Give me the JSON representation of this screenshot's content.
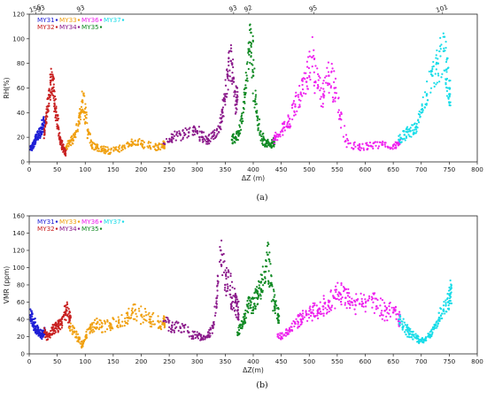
{
  "chart_data": [
    {
      "type": "scatter",
      "caption": "(a)",
      "xlabel": "ΔZ (m)",
      "ylabel": "RH(%)",
      "xlim": [
        0,
        800
      ],
      "ylim": [
        0,
        120
      ],
      "xticks": [
        0,
        50,
        100,
        150,
        200,
        250,
        300,
        350,
        400,
        450,
        500,
        550,
        600,
        650,
        700,
        750,
        800
      ],
      "yticks": [
        0,
        20,
        40,
        60,
        80,
        100,
        120
      ],
      "grid": false,
      "legend_position": "top-left",
      "top_labels": [
        {
          "x": 12,
          "text": "155"
        },
        {
          "x": 22,
          "text": "93"
        },
        {
          "x": 93,
          "text": "93"
        },
        {
          "x": 365,
          "text": "93"
        },
        {
          "x": 392,
          "text": "92"
        },
        {
          "x": 508,
          "text": "95"
        },
        {
          "x": 738,
          "text": "101"
        }
      ],
      "series": [
        {
          "name": "MY31",
          "color": "#1f1fd6",
          "x": [
            2,
            5,
            8,
            11,
            14,
            17,
            20,
            23,
            26
          ],
          "y": [
            10,
            12,
            15,
            18,
            20,
            22,
            24,
            28,
            30
          ]
        },
        {
          "name": "MY32",
          "color": "#c82020",
          "x": [
            27,
            30,
            33,
            36,
            39,
            42,
            45,
            48,
            52,
            56,
            60,
            64
          ],
          "y": [
            22,
            35,
            45,
            58,
            66,
            60,
            50,
            38,
            28,
            18,
            12,
            8
          ]
        },
        {
          "name": "MY33",
          "color": "#f0a010",
          "x": [
            66,
            72,
            78,
            84,
            90,
            95,
            100,
            105,
            112,
            120,
            130,
            140,
            155,
            170,
            185,
            200,
            215,
            230,
            240
          ],
          "y": [
            12,
            16,
            18,
            25,
            38,
            50,
            40,
            25,
            14,
            12,
            10,
            9,
            10,
            12,
            16,
            15,
            13,
            12,
            14
          ]
        },
        {
          "name": "MY34",
          "color": "#8b1a8b",
          "x": [
            240,
            255,
            270,
            285,
            300,
            310,
            320,
            330,
            340,
            345,
            350,
            355,
            360,
            365,
            370
          ],
          "y": [
            15,
            20,
            22,
            24,
            25,
            20,
            18,
            22,
            28,
            40,
            55,
            70,
            82,
            65,
            50
          ]
        },
        {
          "name": "MY35",
          "color": "#118a24",
          "x": [
            362,
            368,
            374,
            380,
            386,
            392,
            396,
            400,
            406,
            412,
            418,
            424,
            430,
            436
          ],
          "y": [
            18,
            20,
            22,
            35,
            60,
            90,
            105,
            70,
            40,
            22,
            18,
            15,
            14,
            16
          ]
        },
        {
          "name": "MY36",
          "color": "#ee22ee",
          "x": [
            436,
            445,
            455,
            465,
            475,
            485,
            495,
            505,
            515,
            525,
            535,
            545,
            555,
            570,
            590,
            610,
            630,
            650,
            660
          ],
          "y": [
            18,
            22,
            28,
            35,
            45,
            55,
            65,
            85,
            60,
            55,
            70,
            60,
            35,
            15,
            12,
            13,
            14,
            13,
            15
          ]
        },
        {
          "name": "MY37",
          "color": "#18dce8",
          "x": [
            660,
            670,
            680,
            690,
            700,
            710,
            720,
            730,
            740,
            745,
            750
          ],
          "y": [
            18,
            22,
            25,
            28,
            40,
            55,
            70,
            80,
            90,
            75,
            55
          ]
        }
      ]
    },
    {
      "type": "scatter",
      "caption": "(b)",
      "xlabel": "ΔZ(m)",
      "ylabel": "VMR (ppm)",
      "xlim": [
        0,
        800
      ],
      "ylim": [
        0,
        160
      ],
      "xticks": [
        0,
        50,
        100,
        150,
        200,
        250,
        300,
        350,
        400,
        450,
        500,
        550,
        600,
        650,
        700,
        750,
        800
      ],
      "yticks": [
        0,
        20,
        40,
        60,
        80,
        100,
        120,
        140,
        160
      ],
      "grid": false,
      "legend_position": "top-left",
      "series": [
        {
          "name": "MY31",
          "color": "#1f1fd6",
          "x": [
            2,
            5,
            8,
            11,
            14,
            17,
            20,
            23,
            26
          ],
          "y": [
            45,
            40,
            36,
            32,
            28,
            26,
            24,
            22,
            25
          ]
        },
        {
          "name": "MY32",
          "color": "#c82020",
          "x": [
            27,
            32,
            37,
            42,
            47,
            52,
            57,
            62,
            67,
            72
          ],
          "y": [
            25,
            20,
            22,
            28,
            30,
            32,
            35,
            45,
            50,
            40
          ]
        },
        {
          "name": "MY33",
          "color": "#f0a010",
          "x": [
            72,
            80,
            88,
            95,
            102,
            110,
            120,
            130,
            145,
            160,
            175,
            185,
            200,
            215,
            230,
            240
          ],
          "y": [
            30,
            25,
            18,
            10,
            22,
            30,
            35,
            32,
            34,
            36,
            42,
            48,
            45,
            40,
            38,
            36
          ]
        },
        {
          "name": "MY34",
          "color": "#8b1a8b",
          "x": [
            240,
            255,
            270,
            285,
            300,
            310,
            320,
            328,
            335,
            342,
            350,
            356,
            362,
            368,
            372
          ],
          "y": [
            38,
            33,
            30,
            25,
            20,
            18,
            22,
            30,
            65,
            120,
            80,
            95,
            65,
            60,
            50
          ]
        },
        {
          "name": "MY35",
          "color": "#118a24",
          "x": [
            372,
            378,
            384,
            390,
            396,
            402,
            408,
            414,
            420,
            426,
            432,
            438,
            444
          ],
          "y": [
            25,
            30,
            40,
            55,
            60,
            58,
            70,
            75,
            95,
            115,
            80,
            55,
            45
          ]
        },
        {
          "name": "MY36",
          "color": "#ee22ee",
          "x": [
            444,
            455,
            465,
            475,
            485,
            495,
            505,
            515,
            525,
            535,
            545,
            555,
            565,
            575,
            590,
            605,
            620,
            635,
            650,
            660
          ],
          "y": [
            20,
            22,
            28,
            35,
            40,
            45,
            48,
            50,
            55,
            60,
            65,
            70,
            65,
            60,
            58,
            62,
            55,
            50,
            48,
            40
          ]
        },
        {
          "name": "MY37",
          "color": "#18dce8",
          "x": [
            660,
            668,
            676,
            684,
            692,
            700,
            708,
            716,
            724,
            732,
            740,
            748,
            752
          ],
          "y": [
            40,
            32,
            26,
            22,
            18,
            15,
            18,
            22,
            30,
            42,
            50,
            60,
            70
          ]
        }
      ]
    }
  ]
}
